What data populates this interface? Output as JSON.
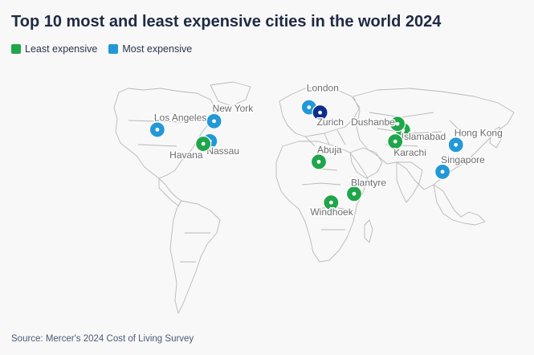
{
  "title": "Top 10 most and least expensive cities in the world 2024",
  "legend": {
    "least_label": "Least expensive",
    "most_label": "Most expensive"
  },
  "colors": {
    "least": "#1fa64a",
    "most": "#2299d6",
    "zurich": "#0b2f8a"
  },
  "source": "Source: Mercer's 2024 Cost of Living Survey",
  "cities": [
    {
      "name": "London",
      "group": "most",
      "lon": -0.1,
      "lat": 51.5
    },
    {
      "name": "Zurich",
      "group": "most",
      "lon": 8.5,
      "lat": 47.4
    },
    {
      "name": "New York",
      "group": "most",
      "lon": -74.0,
      "lat": 40.7
    },
    {
      "name": "Los Angeles",
      "group": "most",
      "lon": -118.2,
      "lat": 34.1
    },
    {
      "name": "Nassau",
      "group": "most",
      "lon": -77.3,
      "lat": 25.1
    },
    {
      "name": "Hong Kong",
      "group": "most",
      "lon": 114.2,
      "lat": 22.3
    },
    {
      "name": "Singapore",
      "group": "most",
      "lon": 103.8,
      "lat": 1.35
    },
    {
      "name": "Havana",
      "group": "least",
      "lon": -82.4,
      "lat": 23.1
    },
    {
      "name": "Abuja",
      "group": "least",
      "lon": 7.5,
      "lat": 9.1
    },
    {
      "name": "Islamabad",
      "group": "least",
      "lon": 73.0,
      "lat": 33.7
    },
    {
      "name": "Dushanbe",
      "group": "least",
      "lon": 68.8,
      "lat": 38.6
    },
    {
      "name": "Karachi",
      "group": "least",
      "lon": 67.0,
      "lat": 24.9
    },
    {
      "name": "Blantyre",
      "group": "least",
      "lon": 35.0,
      "lat": -15.8
    },
    {
      "name": "Windhoek",
      "group": "least",
      "lon": 17.1,
      "lat": -22.6
    }
  ]
}
